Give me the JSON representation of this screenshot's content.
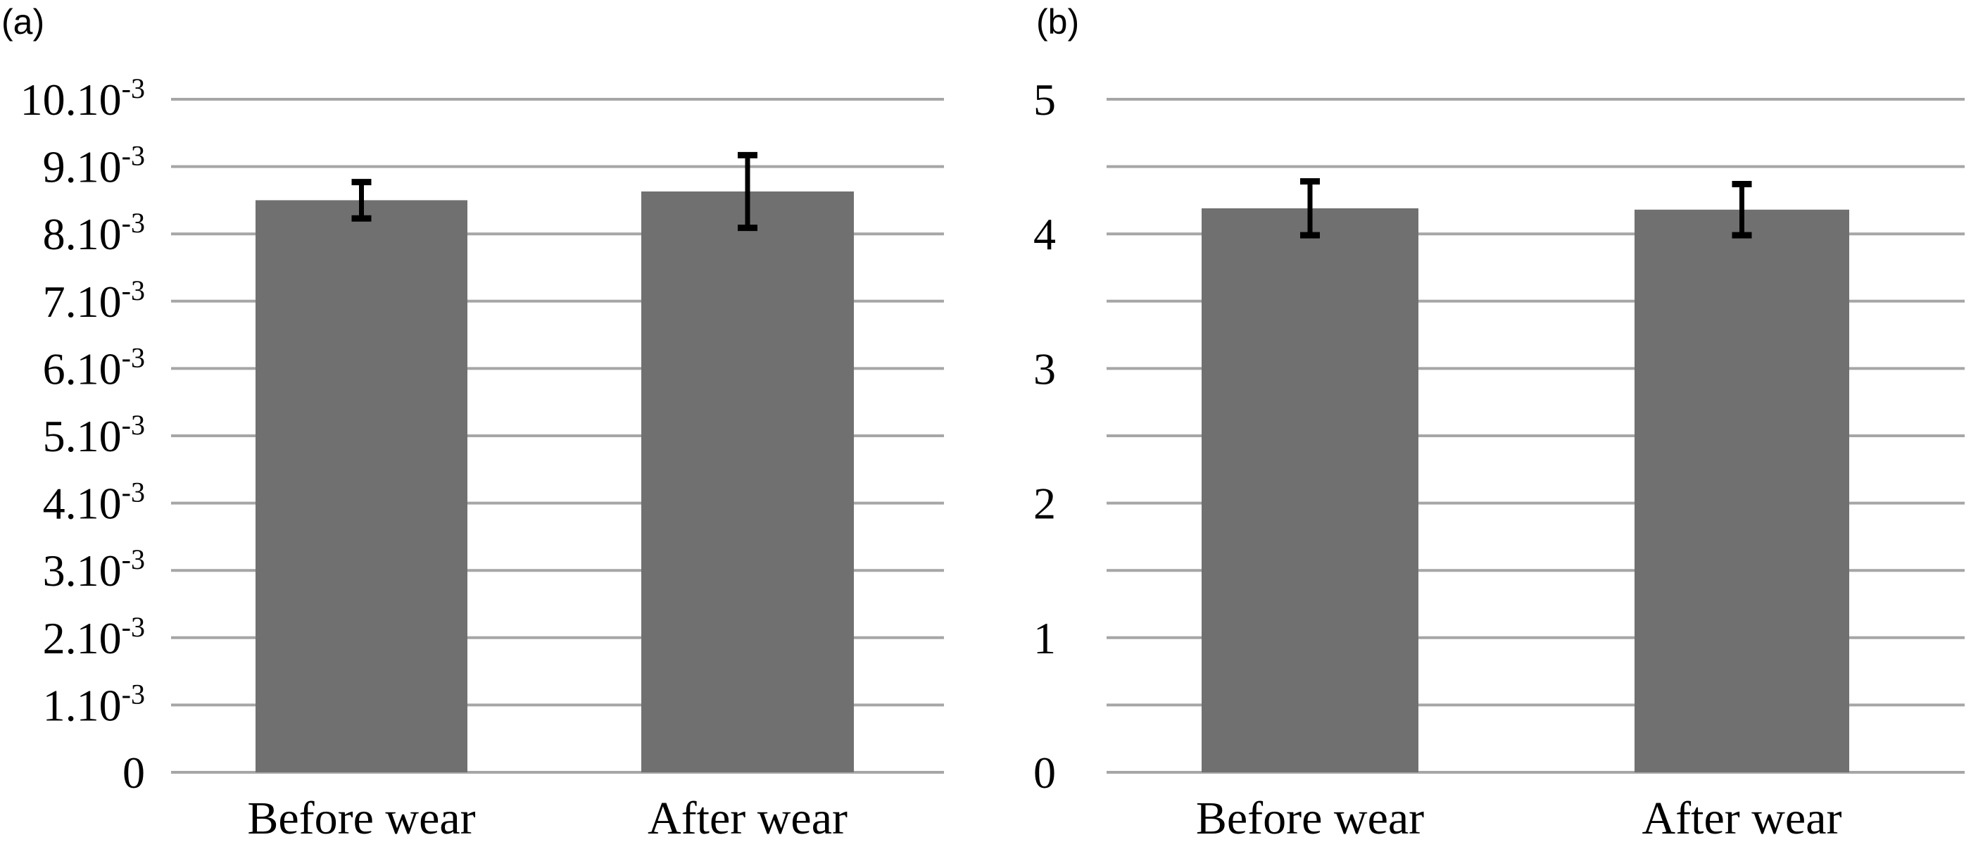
{
  "chart_data": [
    {
      "type": "bar",
      "panel_label": "(a)",
      "categories": [
        "Before wear",
        "After wear"
      ],
      "values": [
        0.0085,
        0.00863
      ],
      "errors": [
        0.00027,
        0.00054
      ],
      "ylim": [
        0,
        0.01
      ],
      "yticks": [
        0,
        0.001,
        0.002,
        0.003,
        0.004,
        0.005,
        0.006,
        0.007,
        0.008,
        0.009,
        0.01
      ],
      "ytick_labels": [
        {
          "base": "0",
          "exp": ""
        },
        {
          "base": "1.10",
          "exp": "-3"
        },
        {
          "base": "2.10",
          "exp": "-3"
        },
        {
          "base": "3.10",
          "exp": "-3"
        },
        {
          "base": "4.10",
          "exp": "-3"
        },
        {
          "base": "5.10",
          "exp": "-3"
        },
        {
          "base": "6.10",
          "exp": "-3"
        },
        {
          "base": "7.10",
          "exp": "-3"
        },
        {
          "base": "8.10",
          "exp": "-3"
        },
        {
          "base": "9.10",
          "exp": "-3"
        },
        {
          "base": "10.10",
          "exp": "-3"
        }
      ],
      "gridlines": [
        0,
        0.001,
        0.002,
        0.003,
        0.004,
        0.005,
        0.006,
        0.007,
        0.008,
        0.009,
        0.01
      ],
      "grid": true,
      "bar_color": "#707070",
      "xlabel": "",
      "ylabel": "",
      "title": ""
    },
    {
      "type": "bar",
      "panel_label": "(b)",
      "categories": [
        "Before wear",
        "After wear"
      ],
      "values": [
        4.19,
        4.18
      ],
      "errors": [
        0.2,
        0.19
      ],
      "ylim": [
        0,
        5
      ],
      "yticks": [
        0,
        1,
        2,
        3,
        4,
        5
      ],
      "ytick_labels": [
        {
          "base": "0",
          "exp": ""
        },
        {
          "base": "1",
          "exp": ""
        },
        {
          "base": "2",
          "exp": ""
        },
        {
          "base": "3",
          "exp": ""
        },
        {
          "base": "4",
          "exp": ""
        },
        {
          "base": "5",
          "exp": ""
        }
      ],
      "gridlines": [
        0,
        0.5,
        1,
        1.5,
        2,
        2.5,
        3,
        3.5,
        4,
        4.5,
        5
      ],
      "grid": true,
      "bar_color": "#707070",
      "xlabel": "",
      "ylabel": "",
      "title": ""
    }
  ]
}
